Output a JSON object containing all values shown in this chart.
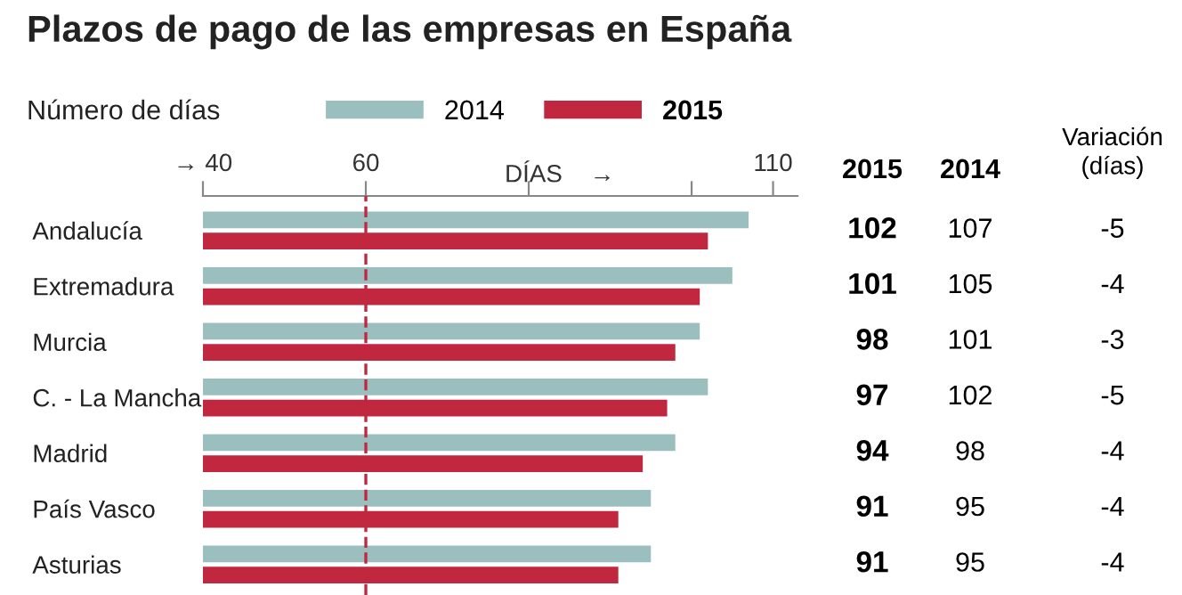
{
  "chart_data": {
    "type": "bar",
    "orientation": "horizontal",
    "title": "Plazos de pago de las empresas en España",
    "legend_title": "Número de días",
    "legend": "top left",
    "xlabel": "DÍAS    →",
    "categories": [
      "Andalucía",
      "Extremadura",
      "Murcia",
      "C. - La Mancha",
      "Madrid",
      "País Vasco",
      "Asturias"
    ],
    "series": [
      {
        "name": "2014",
        "color": "#9bbfbf",
        "values": [
          107,
          105,
          101,
          102,
          98,
          95,
          95
        ]
      },
      {
        "name": "2015",
        "color": "#c1273f",
        "values": [
          102,
          101,
          98,
          97,
          94,
          91,
          91
        ]
      }
    ],
    "xlim": [
      40,
      113
    ],
    "xticks": [
      {
        "value": 40,
        "label": "→ 40"
      },
      60,
      {
        "value": 80,
        "label": null
      },
      {
        "value": 100,
        "label": null
      },
      110
    ],
    "ref_lines": [
      {
        "axis": "x",
        "value": 60,
        "color": "#c1273f",
        "line_style": "dashed"
      }
    ],
    "data_labels": true,
    "annotations": [
      "Variación\n(días)",
      "-5",
      "-4",
      "-3",
      "-5",
      "-4",
      "-4",
      "-4"
    ],
    "grid": false
  }
}
